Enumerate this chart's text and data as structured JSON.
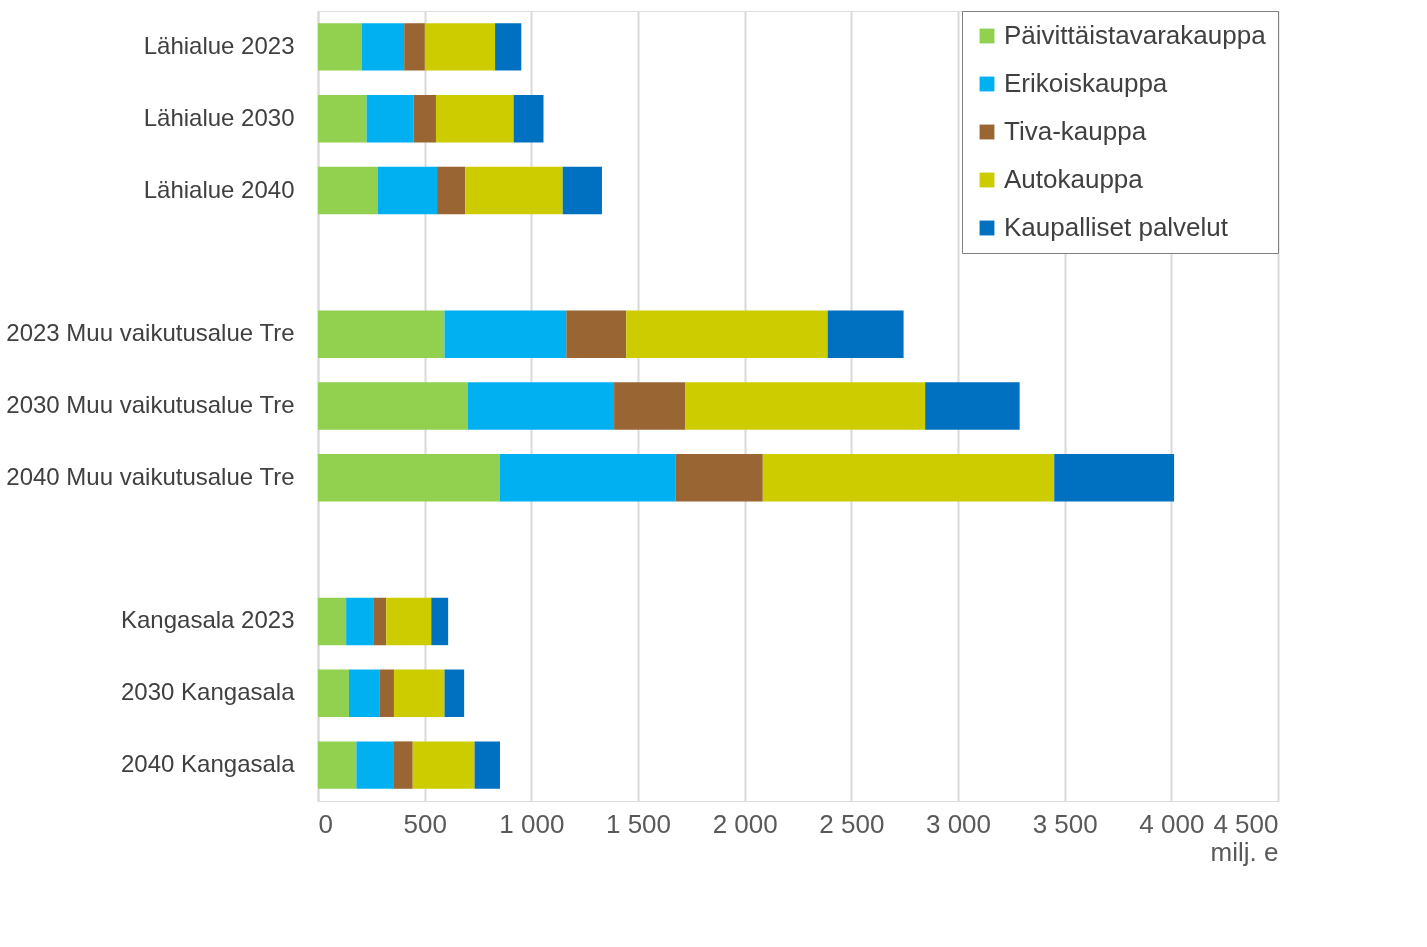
{
  "chart_data": {
    "type": "bar",
    "orientation": "horizontal",
    "stacked": true,
    "xlabel": "milj. e",
    "categories": [
      "Lähialue 2023",
      "Lähialue 2030",
      "Lähialue 2040",
      null,
      "2023 Muu vaikutusalue Tre",
      "2030 Muu vaikutusalue Tre",
      "2040 Muu vaikutusalue Tre",
      null,
      "Kangasala 2023",
      "2030 Kangasala",
      "2040 Kangasala"
    ],
    "series": [
      {
        "name": "Päivittäistavarakauppa",
        "color": "#92d050",
        "values": [
          206,
          228,
          281,
          null,
          593,
          703,
          852,
          null,
          132,
          145,
          180
        ]
      },
      {
        "name": "Erikoiskauppa",
        "color": "#00b0f0",
        "values": [
          198,
          220,
          277,
          null,
          571,
          685,
          825,
          null,
          127,
          145,
          176
        ]
      },
      {
        "name": "Tiva-kauppa",
        "color": "#996633",
        "values": [
          97,
          105,
          132,
          null,
          281,
          334,
          408,
          null,
          61,
          66,
          88
        ]
      },
      {
        "name": "Autokauppa",
        "color": "#cccc00",
        "values": [
          329,
          364,
          457,
          null,
          944,
          1124,
          1366,
          null,
          211,
          237,
          290
        ]
      },
      {
        "name": "Kaupalliset palvelut",
        "color": "#0070c0",
        "values": [
          123,
          140,
          184,
          null,
          356,
          443,
          562,
          null,
          79,
          92,
          119
        ]
      }
    ],
    "xlim": [
      0,
      4500
    ],
    "xticks": [
      0,
      500,
      {
        "value": 1000,
        "label": "1 000"
      },
      {
        "value": 1500,
        "label": "1 500"
      },
      {
        "value": 2000,
        "label": "2 000"
      },
      {
        "value": 2500,
        "label": "2 500"
      },
      {
        "value": 3000,
        "label": "3 000"
      },
      {
        "value": 3500,
        "label": "3 500"
      },
      {
        "value": 4000,
        "label": "4 000"
      },
      {
        "value": 4500,
        "label": "4 500"
      }
    ],
    "grid": "x",
    "legend": "top right"
  }
}
